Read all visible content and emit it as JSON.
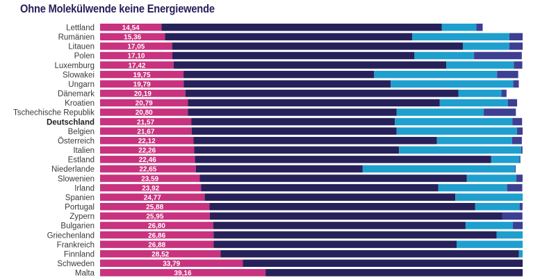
{
  "chart_data": {
    "type": "bar",
    "orientation": "horizontal",
    "stacked": true,
    "title": "Ohne Molekülwende keine Energiewende",
    "xlabel": "",
    "ylabel": "",
    "xlim": [
      0,
      100
    ],
    "grid": false,
    "legend": "none",
    "highlight_category": "Deutschland",
    "categories": [
      "Lettland",
      "Rumänien",
      "Litauen",
      "Polen",
      "Luxemburg",
      "Slowakei",
      "Ungarn",
      "Dänemark",
      "Kroatien",
      "Tschechische Republik",
      "Deutschland",
      "Belgien",
      "Österreich",
      "Italien",
      "Estland",
      "Niederlande",
      "Slowenien",
      "Irland",
      "Spanien",
      "Portugal",
      "Zypern",
      "Bulgarien",
      "Griechenland",
      "Frankreich",
      "Finnland",
      "Schweden",
      "Malta"
    ],
    "value_labels": [
      "14,54",
      "15,36",
      "17,05",
      "17,10",
      "17,42",
      "19,75",
      "19,79",
      "20,19",
      "20,79",
      "20,80",
      "21,57",
      "21,67",
      "22,12",
      "22,26",
      "22,46",
      "22,65",
      "23,59",
      "23,92",
      "24,77",
      "25,88",
      "25,95",
      "26,80",
      "26,86",
      "26,88",
      "28,52",
      "33,79",
      "39,16"
    ],
    "series": [
      {
        "name": "segment-1",
        "color": "#c8327f",
        "values": [
          14.54,
          15.36,
          17.05,
          17.1,
          17.42,
          19.75,
          19.79,
          20.19,
          20.79,
          20.8,
          21.57,
          21.67,
          22.12,
          22.26,
          22.46,
          22.65,
          23.59,
          23.92,
          24.77,
          25.88,
          25.95,
          26.8,
          26.86,
          26.88,
          28.52,
          33.79,
          39.16
        ]
      },
      {
        "name": "segment-2",
        "color": "#27215a",
        "values": [
          66.3,
          58.5,
          68.8,
          57.3,
          64.5,
          45.1,
          49.0,
          64.6,
          59.6,
          49.4,
          48.2,
          48.5,
          57.6,
          48.5,
          70.1,
          39.5,
          63.2,
          56.1,
          59.3,
          62.9,
          69.2,
          59.7,
          67.0,
          57.5,
          70.6,
          71.0,
          60.84
        ]
      },
      {
        "name": "segment-3",
        "color": "#1f9fce",
        "values": [
          8.2,
          23.0,
          11.0,
          14.1,
          16.0,
          29.1,
          29.0,
          10.2,
          16.1,
          20.6,
          27.8,
          28.5,
          17.8,
          28.9,
          6.7,
          36.0,
          11.7,
          16.3,
          16.1,
          10.5,
          0,
          11.2,
          7.7,
          18.8,
          3.3,
          2.1,
          0
        ]
      },
      {
        "name": "segment-4",
        "color": "#3d3f93",
        "values": [
          1.5,
          3.6,
          3.3,
          11.3,
          2.0,
          5.0,
          1.3,
          1.2,
          2.2,
          7.6,
          2.3,
          1.6,
          2.3,
          0.3,
          0.2,
          0.2,
          1.5,
          3.6,
          0.8,
          0.7,
          4.8,
          2.3,
          0.5,
          1.0,
          1.2,
          1.3,
          0
        ]
      }
    ]
  }
}
